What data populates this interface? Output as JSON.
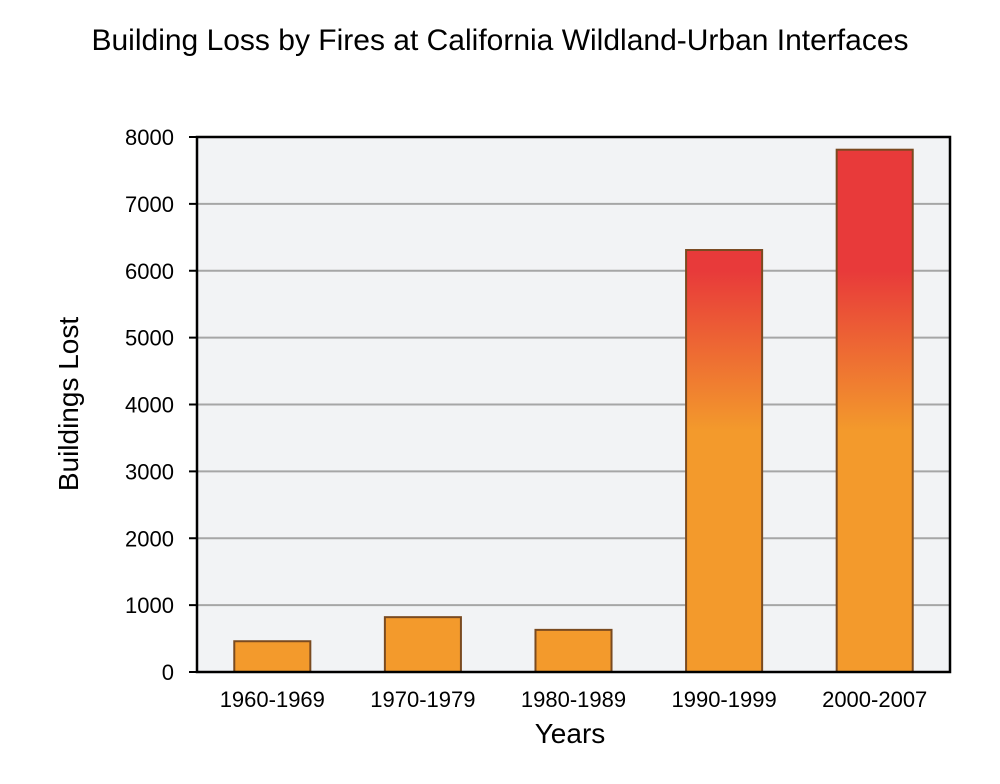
{
  "chart_data": {
    "type": "bar",
    "title": "Building Loss by Fires at California Wildland-Urban Interfaces",
    "xlabel": "Years",
    "ylabel": "Buildings Lost",
    "categories": [
      "1960-1969",
      "1970-1979",
      "1980-1989",
      "1990-1999",
      "2000-2007"
    ],
    "values": [
      460,
      820,
      630,
      6310,
      7810
    ],
    "ylim": [
      0,
      8000
    ],
    "yticks": [
      0,
      1000,
      2000,
      3000,
      4000,
      5000,
      6000,
      7000,
      8000
    ],
    "grid": true,
    "legend": "none",
    "colors": {
      "plot_background": "#f2f3f5",
      "gridline": "#a6a6a6",
      "bar_bottom": "#f39a2c",
      "bar_top": "#e83a3a",
      "bar_outline": "#7a4a20",
      "axis": "#000000"
    }
  }
}
